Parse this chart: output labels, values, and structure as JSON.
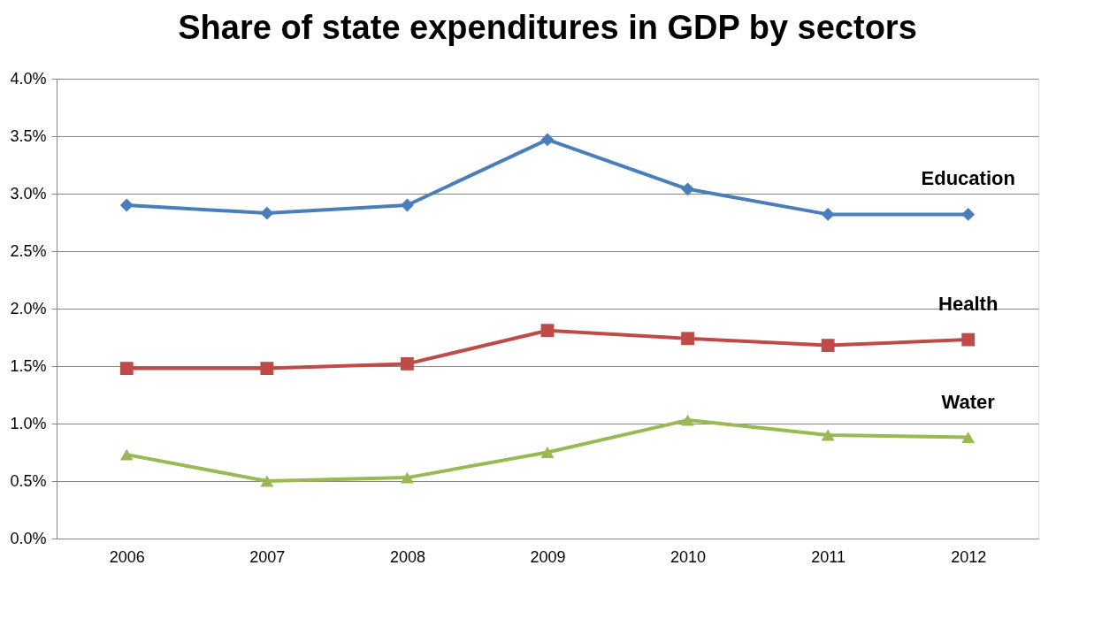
{
  "chart_data": {
    "type": "line",
    "title": "Share of state expenditures in GDP by sectors",
    "categories": [
      "2006",
      "2007",
      "2008",
      "2009",
      "2010",
      "2011",
      "2012"
    ],
    "series": [
      {
        "name": "Education",
        "color": "#4a7ebb",
        "marker": "diamond",
        "values": [
          2.9,
          2.83,
          2.9,
          3.47,
          3.04,
          2.82,
          2.82
        ]
      },
      {
        "name": "Health",
        "color": "#be4b48",
        "marker": "square",
        "values": [
          1.48,
          1.48,
          1.52,
          1.81,
          1.74,
          1.68,
          1.73
        ]
      },
      {
        "name": "Water",
        "color": "#98b954",
        "marker": "triangle",
        "values": [
          0.73,
          0.5,
          0.53,
          0.75,
          1.03,
          0.9,
          0.88
        ]
      }
    ],
    "ylim": [
      0,
      4
    ],
    "yticks": [
      {
        "value": 0,
        "label": "0.0%"
      },
      {
        "value": 0.5,
        "label": "0.5%"
      },
      {
        "value": 1,
        "label": "1.0%"
      },
      {
        "value": 1.5,
        "label": "1.5%"
      },
      {
        "value": 2,
        "label": "2.0%"
      },
      {
        "value": 2.5,
        "label": "2.5%"
      },
      {
        "value": 3,
        "label": "3.0%"
      },
      {
        "value": 3.5,
        "label": "3.5%"
      },
      {
        "value": 4,
        "label": "4.0%"
      }
    ],
    "grid": "y",
    "legend": false,
    "line_style": "solid"
  }
}
